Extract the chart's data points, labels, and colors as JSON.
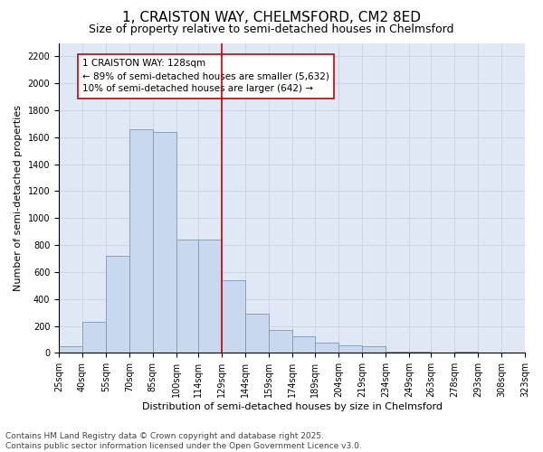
{
  "title": "1, CRAISTON WAY, CHELMSFORD, CM2 8ED",
  "subtitle": "Size of property relative to semi-detached houses in Chelmsford",
  "xlabel": "Distribution of semi-detached houses by size in Chelmsford",
  "ylabel": "Number of semi-detached properties",
  "footer_line1": "Contains HM Land Registry data © Crown copyright and database right 2025.",
  "footer_line2": "Contains public sector information licensed under the Open Government Licence v3.0.",
  "annotation_title": "1 CRAISTON WAY: 128sqm",
  "annotation_line1": "← 89% of semi-detached houses are smaller (5,632)",
  "annotation_line2": "10% of semi-detached houses are larger (642) →",
  "bin_edges": [
    25,
    40,
    55,
    70,
    85,
    100,
    114,
    129,
    144,
    159,
    174,
    189,
    204,
    219,
    234,
    249,
    263,
    278,
    293,
    308,
    323
  ],
  "bin_labels": [
    "25sqm",
    "40sqm",
    "55sqm",
    "70sqm",
    "85sqm",
    "100sqm",
    "114sqm",
    "129sqm",
    "144sqm",
    "159sqm",
    "174sqm",
    "189sqm",
    "204sqm",
    "219sqm",
    "234sqm",
    "249sqm",
    "263sqm",
    "278sqm",
    "293sqm",
    "308sqm",
    "323sqm"
  ],
  "values": [
    50,
    230,
    720,
    1660,
    1640,
    840,
    840,
    540,
    290,
    170,
    125,
    75,
    55,
    50,
    10,
    8,
    0,
    8,
    0,
    0,
    0
  ],
  "bar_color": "#c8d8ee",
  "bar_edge_color": "#7799bb",
  "vline_color": "#cc0000",
  "vline_x": 129,
  "ylim": [
    0,
    2300
  ],
  "yticks": [
    0,
    200,
    400,
    600,
    800,
    1000,
    1200,
    1400,
    1600,
    1800,
    2000,
    2200
  ],
  "grid_color": "#c8d2e0",
  "background_color": "#dfe8f4",
  "title_fontsize": 11,
  "subtitle_fontsize": 9,
  "axis_label_fontsize": 8,
  "tick_fontsize": 7,
  "annotation_fontsize": 7.5,
  "footer_fontsize": 6.5
}
